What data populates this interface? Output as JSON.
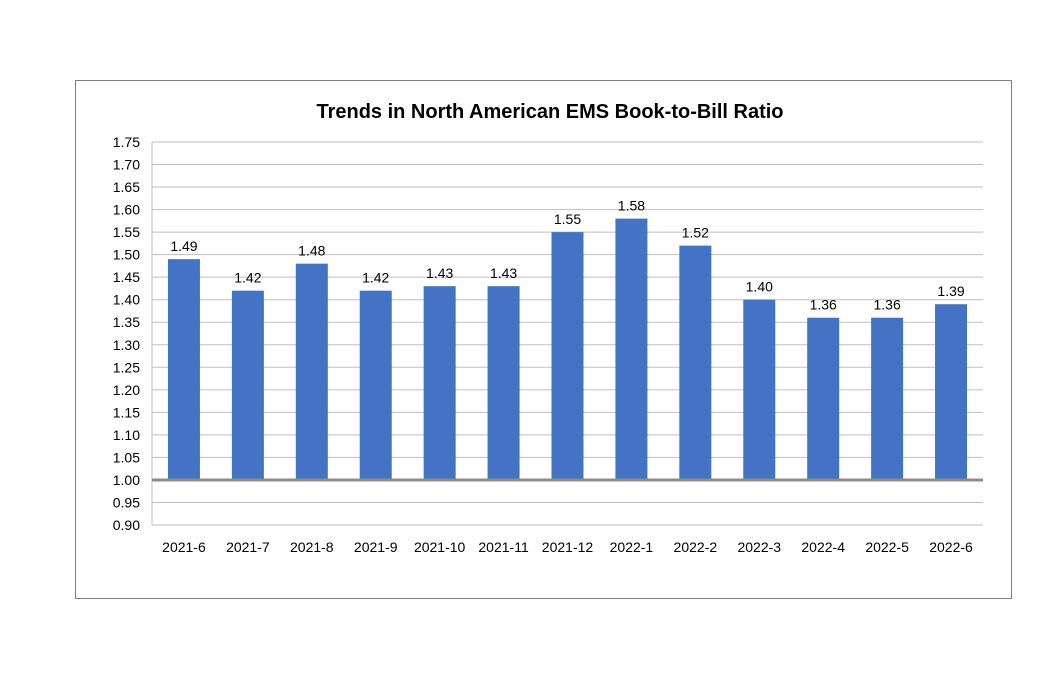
{
  "chart_data": {
    "type": "bar",
    "title": "Trends in North American EMS Book-to-Bill Ratio",
    "xlabel": "",
    "ylabel": "",
    "categories": [
      "2021-6",
      "2021-7",
      "2021-8",
      "2021-9",
      "2021-10",
      "2021-11",
      "2021-12",
      "2022-1",
      "2022-2",
      "2022-3",
      "2022-4",
      "2022-5",
      "2022-6"
    ],
    "values": [
      1.49,
      1.42,
      1.48,
      1.42,
      1.43,
      1.43,
      1.55,
      1.58,
      1.52,
      1.4,
      1.36,
      1.36,
      1.39
    ],
    "data_labels": [
      "1.49",
      "1.42",
      "1.48",
      "1.42",
      "1.43",
      "1.43",
      "1.55",
      "1.58",
      "1.52",
      "1.40",
      "1.36",
      "1.36",
      "1.39"
    ],
    "yticks": [
      "0.90",
      "0.95",
      "1.00",
      "1.05",
      "1.10",
      "1.15",
      "1.20",
      "1.25",
      "1.30",
      "1.35",
      "1.40",
      "1.45",
      "1.50",
      "1.55",
      "1.60",
      "1.65",
      "1.70",
      "1.75"
    ],
    "ylim": [
      0.9,
      1.75
    ],
    "baseline": 1.0,
    "grid": true,
    "legend": "none",
    "colors": {
      "bar": "#4472c4",
      "grid": "#bfbfbf",
      "baseline": "#8c8c8c",
      "frame": "#7f7f7f"
    }
  }
}
